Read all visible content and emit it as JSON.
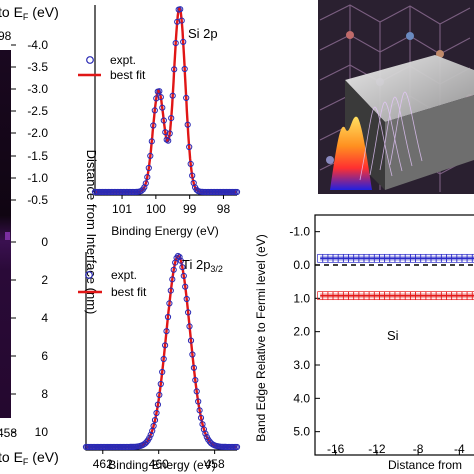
{
  "chart_data": [
    {
      "panel": "left-strip",
      "type": "heatmap",
      "top_label": "to E",
      "top_label_sub": "F",
      "top_label_tail": " (eV)",
      "top_value": "98",
      "bottom_value": "458",
      "bottom_label": "to E",
      "bottom_label_sub": "F",
      "bottom_label_tail": " (eV)",
      "ylabel": "Distance from Interface (nm)",
      "yticks": [
        "-4.0",
        "-3.5",
        "-3.0",
        "-2.5",
        "-2.0",
        "-1.5",
        "-1.0",
        "-0.5",
        "0",
        "2",
        "4",
        "6",
        "8",
        "10"
      ],
      "colors": {
        "dark": "#0b0310",
        "purple": "#4a1660",
        "bright": "#8c3fb0"
      }
    },
    {
      "panel": "si-2p",
      "type": "scatter",
      "title": "Si 2p",
      "legend": [
        "expt.",
        "best fit"
      ],
      "xlabel": "Binding Energy (eV)",
      "xticks": [
        "101",
        "100",
        "99",
        "98"
      ],
      "xlim": [
        101.8,
        97.6
      ],
      "peaks": [
        {
          "center": 99.3,
          "height": 1.0
        },
        {
          "center": 99.92,
          "height": 0.55
        }
      ],
      "colors": {
        "expt": "#2a2ab4",
        "fit": "#e01616"
      }
    },
    {
      "panel": "ti-2p32",
      "type": "scatter",
      "title": "Ti 2p",
      "title_sub": "3/2",
      "legend": [
        "expt.",
        "best fit"
      ],
      "xlabel": "Binding Energy (eV)",
      "xticks": [
        "462",
        "460",
        "458"
      ],
      "xlim": [
        462.6,
        457.2
      ],
      "peaks": [
        {
          "center": 459.3,
          "height": 1.0
        }
      ],
      "colors": {
        "expt": "#2a2ab4",
        "fit": "#e01616"
      }
    },
    {
      "panel": "band-edge",
      "type": "line",
      "ylabel": "Band Edge Relative to Fermi level (eV)",
      "xlabel": "Distance from",
      "annotation": "Si",
      "xticks": [
        "-16",
        "-12",
        "-8",
        "-4"
      ],
      "yticks": [
        "-1.0",
        "0.0",
        "1.0",
        "2.0",
        "3.0",
        "4.0",
        "5.0"
      ],
      "ylim": [
        -1.5,
        5.7
      ],
      "xlim": [
        -18,
        -2
      ],
      "series": [
        {
          "color": "#2b2bc8",
          "x": [
            -17.5,
            -16,
            -14,
            -12,
            -10,
            -8,
            -6,
            -4,
            -2
          ],
          "y": [
            -0.2,
            -0.2,
            -0.2,
            -0.2,
            -0.2,
            -0.2,
            -0.2,
            -0.2,
            -0.2
          ]
        },
        {
          "color": "#e41a1a",
          "x": [
            -17.5,
            -16,
            -14,
            -12,
            -10,
            -8,
            -6,
            -4,
            -2
          ],
          "y": [
            0.92,
            0.92,
            0.92,
            0.92,
            0.92,
            0.92,
            0.92,
            0.92,
            0.92
          ]
        }
      ],
      "fermi_level": 0.0
    }
  ]
}
